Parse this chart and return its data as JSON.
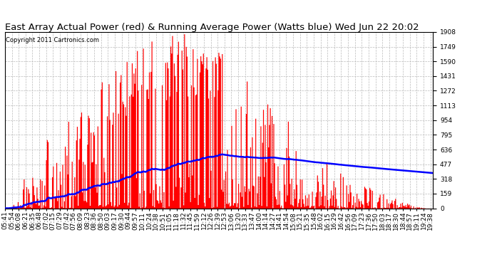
{
  "title": "East Array Actual Power (red) & Running Average Power (Watts blue) Wed Jun 22 20:02",
  "copyright": "Copyright 2011 Cartronics.com",
  "bg_color": "#ffffff",
  "bar_color": "#ff0000",
  "avg_color": "#0000ff",
  "yticks": [
    0.0,
    159.0,
    317.9,
    476.9,
    635.8,
    794.8,
    953.8,
    1112.7,
    1271.7,
    1430.7,
    1589.6,
    1748.6,
    1907.5
  ],
  "ymax": 1907.5,
  "ymin": 0.0,
  "grid_color": "#bbbbbb",
  "grid_linestyle": "--",
  "title_fontsize": 9.5,
  "tick_fontsize": 6.5,
  "copyright_fontsize": 6.0,
  "avg_linewidth": 1.8,
  "figwidth": 6.9,
  "figheight": 3.75,
  "dpi": 100
}
